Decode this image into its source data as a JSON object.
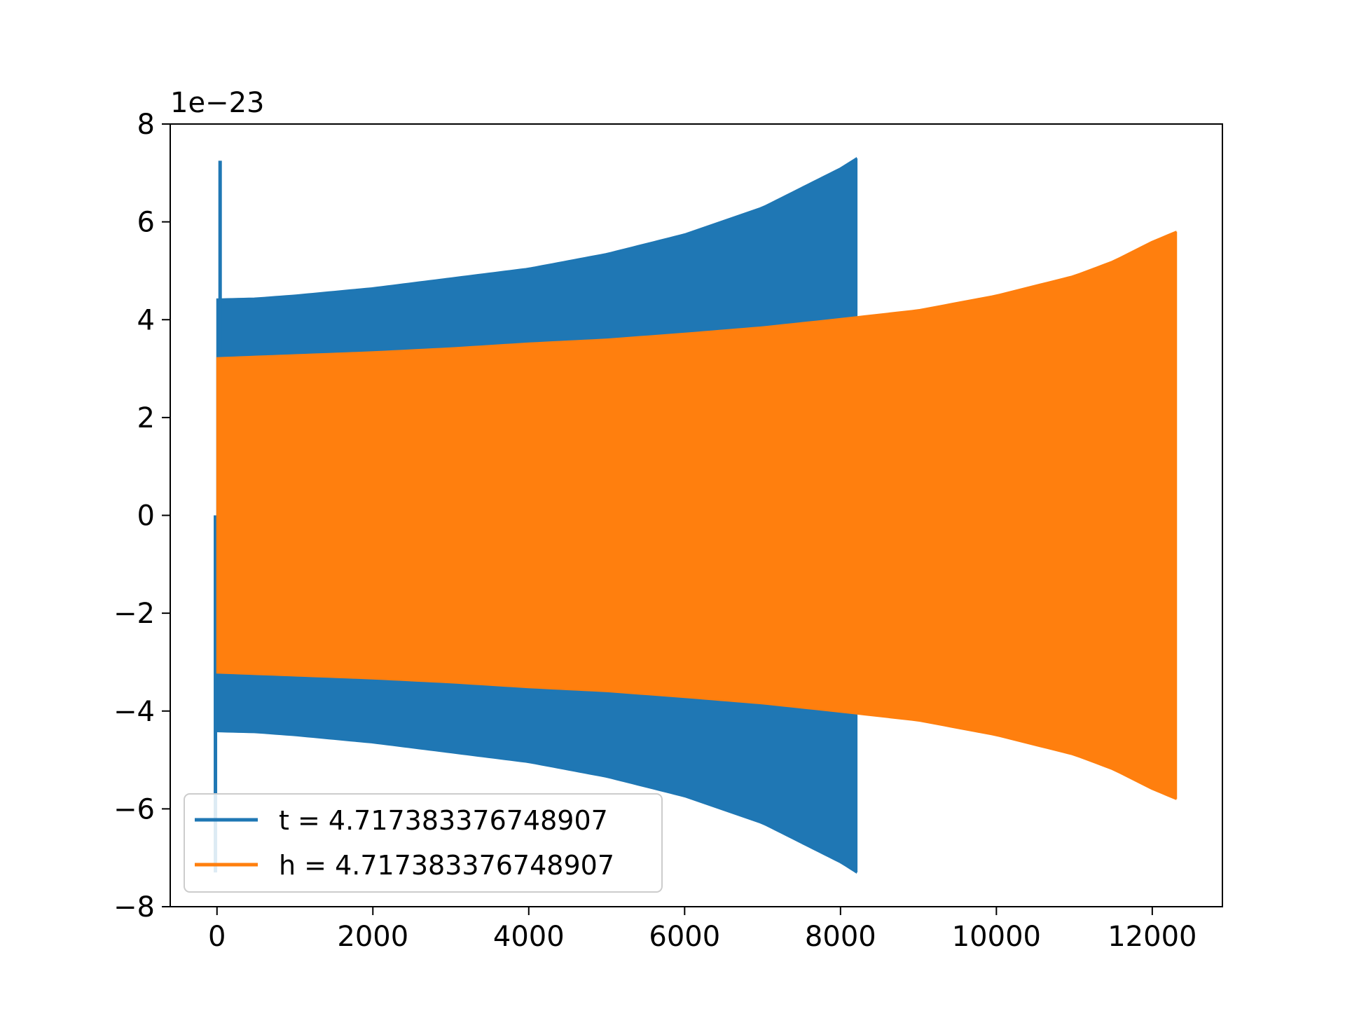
{
  "chart_data": {
    "type": "line",
    "title": "",
    "xlabel": "",
    "ylabel": "",
    "y_offset_label": "1e−23",
    "y_scale_exponent": -23,
    "xlim": [
      -600,
      12900
    ],
    "ylim": [
      -8,
      8
    ],
    "x_ticks": [
      0,
      2000,
      4000,
      6000,
      8000,
      10000,
      12000
    ],
    "x_tick_labels": [
      "0",
      "2000",
      "4000",
      "6000",
      "8000",
      "10000",
      "12000"
    ],
    "y_ticks": [
      -8,
      -6,
      -4,
      -2,
      0,
      2,
      4,
      6,
      8
    ],
    "y_tick_labels": [
      "−8",
      "−6",
      "−4",
      "−2",
      "0",
      "2",
      "4",
      "6",
      "8"
    ],
    "grid": false,
    "legend_position": "lower-left",
    "series": [
      {
        "name": "t = 4.717383376748907",
        "color": "#1f77b4",
        "x_start": 0,
        "x_end": 8200,
        "envelope_x": [
          0,
          500,
          1000,
          2000,
          3000,
          4000,
          5000,
          6000,
          7000,
          7500,
          8000,
          8200
        ],
        "envelope_amplitude": [
          4.42,
          4.44,
          4.5,
          4.65,
          4.85,
          5.05,
          5.35,
          5.75,
          6.3,
          6.7,
          7.1,
          7.3
        ],
        "initial_spike": {
          "x_range": [
            -20,
            40
          ],
          "max": 7.25,
          "min": -7.3
        }
      },
      {
        "name": "h = 4.717383376748907",
        "color": "#ff7f0e",
        "x_start": 0,
        "x_end": 12300,
        "envelope_x": [
          0,
          1000,
          2000,
          3000,
          4000,
          5000,
          6000,
          7000,
          8000,
          9000,
          10000,
          11000,
          11500,
          12000,
          12300
        ],
        "envelope_amplitude": [
          3.22,
          3.28,
          3.34,
          3.42,
          3.52,
          3.6,
          3.72,
          3.85,
          4.02,
          4.2,
          4.5,
          4.9,
          5.2,
          5.6,
          5.8
        ]
      }
    ]
  }
}
